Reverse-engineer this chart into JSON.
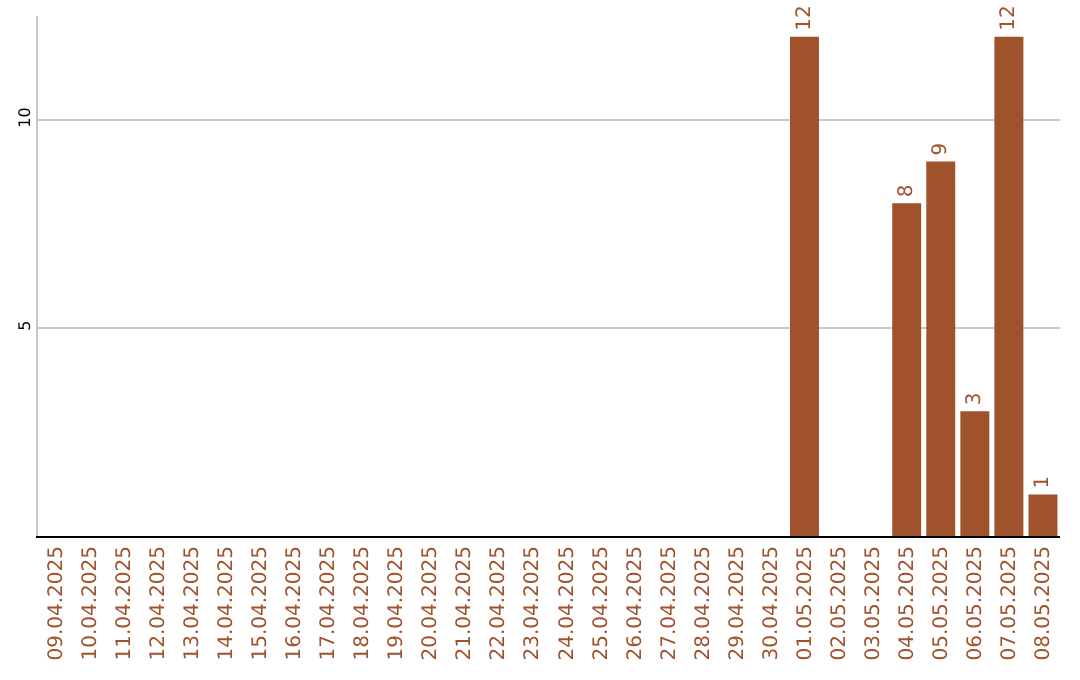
{
  "chart_data": {
    "type": "bar",
    "categories": [
      "09.04.2025",
      "10.04.2025",
      "11.04.2025",
      "12.04.2025",
      "13.04.2025",
      "14.04.2025",
      "15.04.2025",
      "16.04.2025",
      "17.04.2025",
      "18.04.2025",
      "19.04.2025",
      "20.04.2025",
      "21.04.2025",
      "22.04.2025",
      "23.04.2025",
      "24.04.2025",
      "25.04.2025",
      "26.04.2025",
      "27.04.2025",
      "28.04.2025",
      "29.04.2025",
      "30.04.2025",
      "01.05.2025",
      "02.05.2025",
      "03.05.2025",
      "04.05.2025",
      "05.05.2025",
      "06.05.2025",
      "07.05.2025",
      "08.05.2025"
    ],
    "values": [
      0,
      0,
      0,
      0,
      0,
      0,
      0,
      0,
      0,
      0,
      0,
      0,
      0,
      0,
      0,
      0,
      0,
      0,
      0,
      0,
      0,
      0,
      12,
      0,
      0,
      8,
      9,
      3,
      12,
      1
    ],
    "value_labels": [
      null,
      null,
      null,
      null,
      null,
      null,
      null,
      null,
      null,
      null,
      null,
      null,
      null,
      null,
      null,
      null,
      null,
      null,
      null,
      null,
      null,
      null,
      "12",
      null,
      null,
      "8",
      "9",
      "3",
      "12",
      "1"
    ],
    "color": "#a0522d",
    "ylim": [
      0,
      12.5
    ],
    "yticks": [
      5,
      10
    ],
    "grid": "y"
  }
}
